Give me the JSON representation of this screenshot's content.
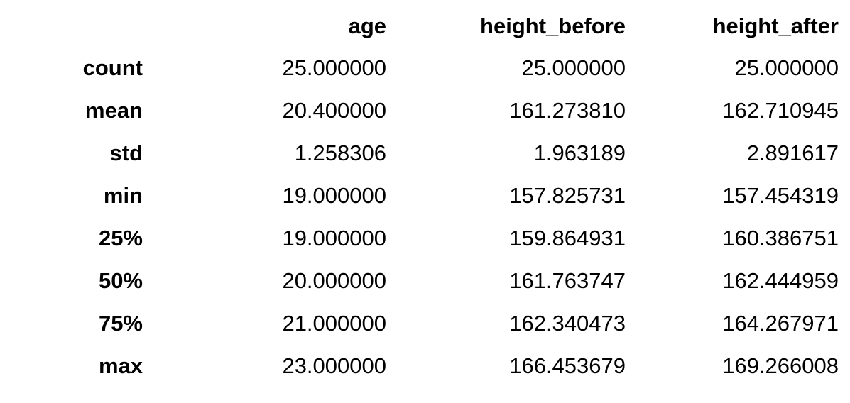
{
  "table": {
    "columns": [
      "",
      "age",
      "height_before",
      "height_after"
    ],
    "rows": [
      {
        "label": "count",
        "values": [
          "25.000000",
          "25.000000",
          "25.000000"
        ]
      },
      {
        "label": "mean",
        "values": [
          "20.400000",
          "161.273810",
          "162.710945"
        ]
      },
      {
        "label": "std",
        "values": [
          "1.258306",
          "1.963189",
          "2.891617"
        ]
      },
      {
        "label": "min",
        "values": [
          "19.000000",
          "157.825731",
          "157.454319"
        ]
      },
      {
        "label": "25%",
        "values": [
          "19.000000",
          "159.864931",
          "160.386751"
        ]
      },
      {
        "label": "50%",
        "values": [
          "20.000000",
          "161.763747",
          "162.444959"
        ]
      },
      {
        "label": "75%",
        "values": [
          "21.000000",
          "162.340473",
          "164.267971"
        ]
      },
      {
        "label": "max",
        "values": [
          "23.000000",
          "166.453679",
          "169.266008"
        ]
      }
    ]
  }
}
